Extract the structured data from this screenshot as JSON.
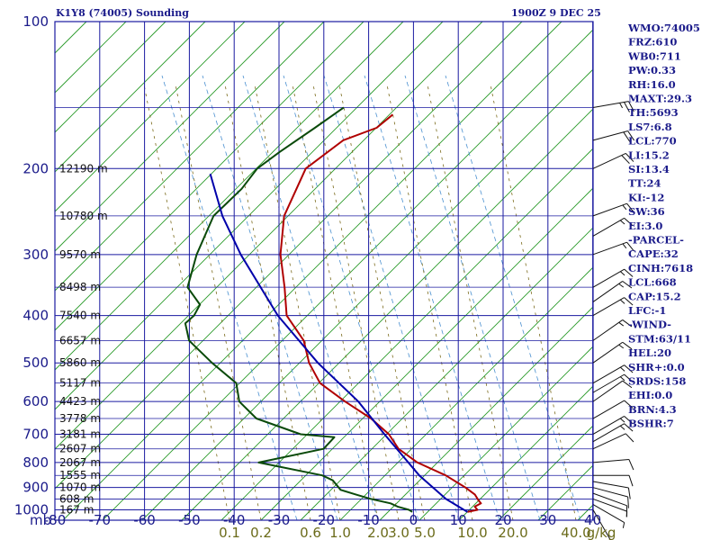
{
  "header": {
    "station": "K1Y8 (74005) Sounding",
    "time": "1900Z  9 DEC 25"
  },
  "chart_data": {
    "type": "line",
    "title": "K1Y8 (74005) Sounding",
    "xlabel": "mb",
    "ylabel": "",
    "temperature_ticks": [
      "-80",
      "-70",
      "-60",
      "-50",
      "-40",
      "-30",
      "-20",
      "-10",
      "0",
      "10",
      "20",
      "30",
      "40"
    ],
    "pressure_ticks": [
      "100",
      "200",
      "300",
      "400",
      "500",
      "600",
      "700",
      "800",
      "900",
      "1000"
    ],
    "mixing_ratio_ticks": [
      "0.1",
      "0.2",
      "0.6",
      "1.0",
      "2.0",
      "3.0",
      "5.0",
      "10.0",
      "20.0",
      "40.0",
      "g/kg"
    ],
    "height_labels": [
      {
        "p": 200,
        "label": "12190 m"
      },
      {
        "p": 250,
        "label": "10780 m"
      },
      {
        "p": 300,
        "label": "9570 m"
      },
      {
        "p": 350,
        "label": "8498 m"
      },
      {
        "p": 400,
        "label": "7540 m"
      },
      {
        "p": 450,
        "label": "6657 m"
      },
      {
        "p": 500,
        "label": "5860 m"
      },
      {
        "p": 550,
        "label": "5117 m"
      },
      {
        "p": 600,
        "label": "4423 m"
      },
      {
        "p": 650,
        "label": "3778 m"
      },
      {
        "p": 700,
        "label": "3181 m"
      },
      {
        "p": 750,
        "label": "2607 m"
      },
      {
        "p": 800,
        "label": "2067 m"
      },
      {
        "p": 850,
        "label": "1555 m"
      },
      {
        "p": 900,
        "label": "1070 m"
      },
      {
        "p": 950,
        "label": "608 m"
      },
      {
        "p": 1000,
        "label": "167 m"
      }
    ],
    "series": [
      {
        "name": "temperature",
        "color": "#b00000",
        "points": [
          [
            1010,
            11.5
          ],
          [
            1000,
            13.5
          ],
          [
            985,
            12.5
          ],
          [
            970,
            13.5
          ],
          [
            955,
            12.5
          ],
          [
            930,
            11
          ],
          [
            900,
            8
          ],
          [
            850,
            2
          ],
          [
            800,
            -6
          ],
          [
            750,
            -12
          ],
          [
            700,
            -16
          ],
          [
            650,
            -22
          ],
          [
            600,
            -30
          ],
          [
            550,
            -38
          ],
          [
            500,
            -43
          ],
          [
            450,
            -47
          ],
          [
            400,
            -54
          ],
          [
            350,
            -58
          ],
          [
            300,
            -63
          ],
          [
            250,
            -67
          ],
          [
            200,
            -68
          ],
          [
            175,
            -63
          ],
          [
            165,
            -57
          ],
          [
            155,
            -55
          ]
        ]
      },
      {
        "name": "dewpoint",
        "color": "#0a4a0a",
        "points": [
          [
            1010,
            -1
          ],
          [
            1000,
            -2
          ],
          [
            985,
            -5
          ],
          [
            970,
            -7
          ],
          [
            950,
            -12
          ],
          [
            930,
            -16
          ],
          [
            910,
            -20
          ],
          [
            870,
            -23
          ],
          [
            850,
            -26
          ],
          [
            800,
            -42
          ],
          [
            750,
            -29
          ],
          [
            710,
            -28
          ],
          [
            700,
            -36
          ],
          [
            650,
            -48
          ],
          [
            600,
            -54
          ],
          [
            550,
            -57
          ],
          [
            500,
            -65
          ],
          [
            450,
            -73
          ],
          [
            415,
            -76
          ],
          [
            400,
            -75
          ],
          [
            380,
            -75
          ],
          [
            350,
            -80
          ],
          [
            300,
            -82
          ],
          [
            250,
            -83
          ],
          [
            220,
            -80
          ],
          [
            200,
            -79
          ],
          [
            185,
            -76
          ],
          [
            165,
            -71
          ],
          [
            150,
            -67
          ]
        ]
      },
      {
        "name": "parcel",
        "color": "#0000aa",
        "points": [
          [
            1010,
            11.5
          ],
          [
            950,
            5
          ],
          [
            850,
            -4
          ],
          [
            700,
            -17
          ],
          [
            600,
            -27
          ],
          [
            500,
            -41
          ],
          [
            400,
            -56
          ],
          [
            300,
            -72
          ],
          [
            250,
            -81
          ],
          [
            205,
            -89
          ]
        ]
      }
    ]
  },
  "indices": [
    "WMO:74005",
    "FRZ:610",
    "WB0:711",
    "PW:0.33",
    "RH:16.0",
    "MAXT:29.3",
    "TH:5693",
    "LS7:6.8",
    "LCL:770",
    "LI:15.2",
    "SI:13.4",
    "TT:24",
    "KI:-12",
    "SW:36",
    "EI:3.0",
    "-PARCEL-",
    "CAPE:32",
    "CINH:7618",
    "LCL:668",
    "CAP:15.2",
    "LFC:-1",
    "-WIND-",
    "STM:63/11",
    "HEL:20",
    "SHR+:0.0",
    "SRDS:158",
    "EHI:0.0",
    "BRN:4.3",
    "BSHR:7"
  ],
  "wind_barbs": [
    {
      "p": 150,
      "dir": 80,
      "spd": 25
    },
    {
      "p": 175,
      "dir": 75,
      "spd": 20
    },
    {
      "p": 200,
      "dir": 65,
      "spd": 20
    },
    {
      "p": 250,
      "dir": 70,
      "spd": 15
    },
    {
      "p": 275,
      "dir": 60,
      "spd": 15
    },
    {
      "p": 300,
      "dir": 70,
      "spd": 15
    },
    {
      "p": 350,
      "dir": 60,
      "spd": 15
    },
    {
      "p": 375,
      "dir": 55,
      "spd": 15
    },
    {
      "p": 400,
      "dir": 60,
      "spd": 15
    },
    {
      "p": 450,
      "dir": 55,
      "spd": 15
    },
    {
      "p": 500,
      "dir": 55,
      "spd": 15
    },
    {
      "p": 550,
      "dir": 60,
      "spd": 15
    },
    {
      "p": 575,
      "dir": 60,
      "spd": 15
    },
    {
      "p": 600,
      "dir": 55,
      "spd": 10
    },
    {
      "p": 650,
      "dir": 60,
      "spd": 10
    },
    {
      "p": 700,
      "dir": 60,
      "spd": 15
    },
    {
      "p": 725,
      "dir": 60,
      "spd": 15
    },
    {
      "p": 750,
      "dir": 65,
      "spd": 10
    },
    {
      "p": 800,
      "dir": 85,
      "spd": 10
    },
    {
      "p": 850,
      "dir": 90,
      "spd": 10
    },
    {
      "p": 875,
      "dir": 100,
      "spd": 10
    },
    {
      "p": 900,
      "dir": 105,
      "spd": 10
    },
    {
      "p": 925,
      "dir": 110,
      "spd": 10
    },
    {
      "p": 950,
      "dir": 110,
      "spd": 5
    },
    {
      "p": 975,
      "dir": 120,
      "spd": 5
    },
    {
      "p": 1000,
      "dir": 150,
      "spd": 5
    }
  ]
}
